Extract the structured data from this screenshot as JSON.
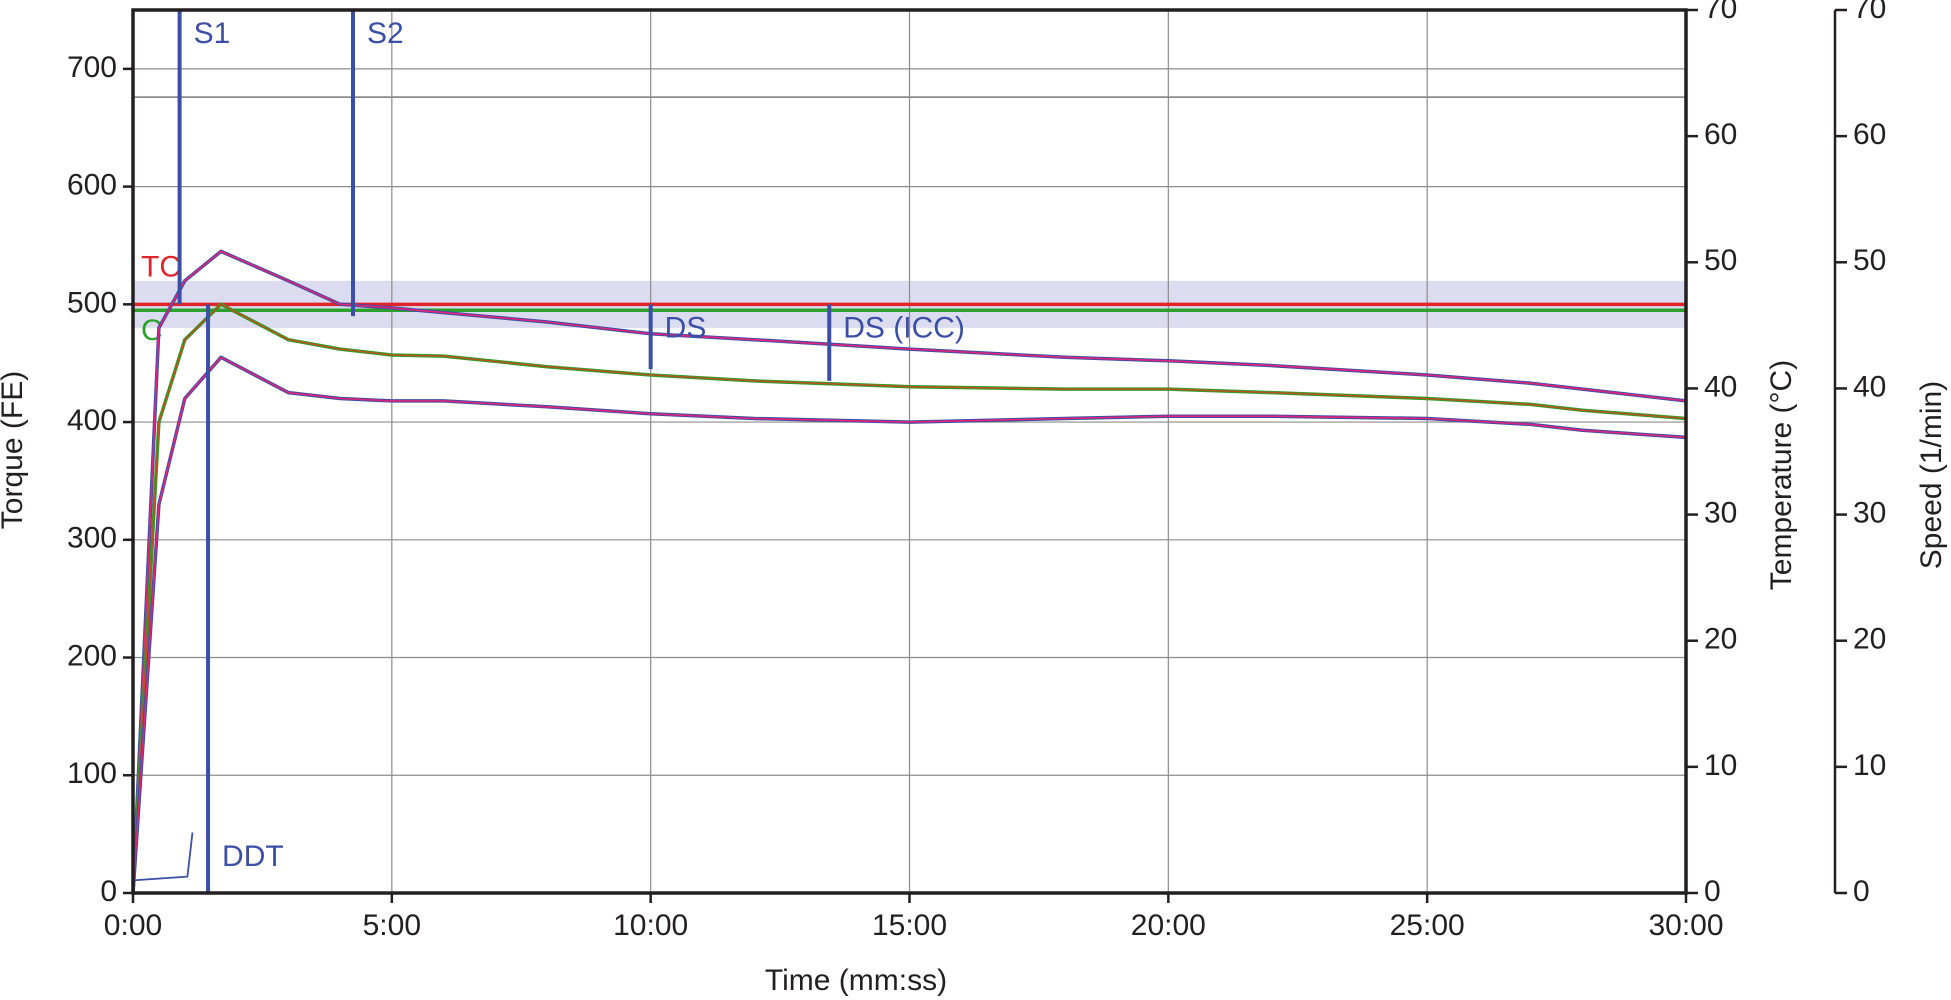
{
  "chart_data": {
    "type": "line",
    "xlabel": "Time (mm:ss)",
    "ylabel": "Torque (FE)",
    "y2label": "Temperature (°C)",
    "y3label": "Speed (1/min)",
    "xlim": [
      0,
      30
    ],
    "xticks": [
      {
        "value": 0,
        "label": "0:00"
      },
      {
        "value": 5,
        "label": "5:00"
      },
      {
        "value": 10,
        "label": "10:00"
      },
      {
        "value": 15,
        "label": "15:00"
      },
      {
        "value": 20,
        "label": "20:00"
      },
      {
        "value": 25,
        "label": "25:00"
      },
      {
        "value": 30,
        "label": "30:00"
      }
    ],
    "ylim": [
      0,
      750
    ],
    "yticks": [
      0,
      100,
      200,
      300,
      400,
      500,
      600,
      700
    ],
    "y2lim": [
      0,
      70
    ],
    "y2ticks": [
      0,
      10,
      20,
      30,
      40,
      50,
      60,
      70
    ],
    "y3lim": [
      0,
      70
    ],
    "y3ticks": [
      0,
      10,
      20,
      30,
      40,
      50,
      60,
      70
    ],
    "grid": true,
    "band": [
      480,
      520
    ],
    "band_color": "#dcdcf0",
    "reference_lines": [
      {
        "label": "TC",
        "value": 500,
        "color": "#e0242b"
      },
      {
        "label": "C",
        "value": 495,
        "color": "#2ca02c"
      }
    ],
    "series": [
      {
        "color": "#3b4fa5",
        "smooth_color": "#e0247a",
        "x": [
          0,
          0.5,
          1,
          1.7,
          3,
          4,
          5,
          6,
          8,
          10,
          12,
          15,
          18,
          20,
          22,
          25,
          27,
          28,
          30
        ],
        "values": [
          0,
          480,
          520,
          545,
          520,
          500,
          497,
          493,
          485,
          475,
          470,
          462,
          455,
          452,
          448,
          440,
          433,
          428,
          418
        ]
      },
      {
        "color": "#2ca02c",
        "smooth_color": "#b5541e",
        "x": [
          0,
          0.5,
          1,
          1.7,
          3,
          4,
          5,
          6,
          8,
          10,
          12,
          15,
          18,
          20,
          22,
          25,
          27,
          28,
          30
        ],
        "values": [
          0,
          400,
          470,
          500,
          470,
          462,
          457,
          456,
          447,
          440,
          435,
          430,
          428,
          428,
          425,
          420,
          415,
          410,
          403
        ]
      },
      {
        "color": "#3b4fa5",
        "smooth_color": "#e0247a",
        "x": [
          0,
          0.5,
          1,
          1.7,
          3,
          4,
          5,
          6,
          8,
          10,
          12,
          15,
          18,
          20,
          22,
          25,
          27,
          28,
          30
        ],
        "values": [
          0,
          330,
          420,
          455,
          425,
          420,
          418,
          418,
          413,
          407,
          403,
          400,
          403,
          405,
          405,
          403,
          398,
          393,
          387
        ]
      },
      {
        "color": "#8c8c8c",
        "x": [
          0,
          30
        ],
        "values": [
          676,
          676
        ]
      },
      {
        "color": "#3b4fa5",
        "axis": "y2",
        "x": [
          0,
          1.05,
          1.15
        ],
        "values": [
          1,
          1.3,
          4.8
        ]
      }
    ],
    "markers": [
      {
        "label": "S1",
        "x": 0.9,
        "y": [
          500,
          750
        ]
      },
      {
        "label": "S2",
        "x": 4.25,
        "y": [
          490,
          750
        ]
      },
      {
        "label": "DDT",
        "x": 1.45,
        "y": [
          0,
          500
        ]
      },
      {
        "label": "DS",
        "x": 10,
        "y": [
          445,
          500
        ]
      },
      {
        "label": "DS (ICC)",
        "x": 13.45,
        "y": [
          435,
          500
        ]
      }
    ],
    "marker_color": "#3b4fa5"
  }
}
